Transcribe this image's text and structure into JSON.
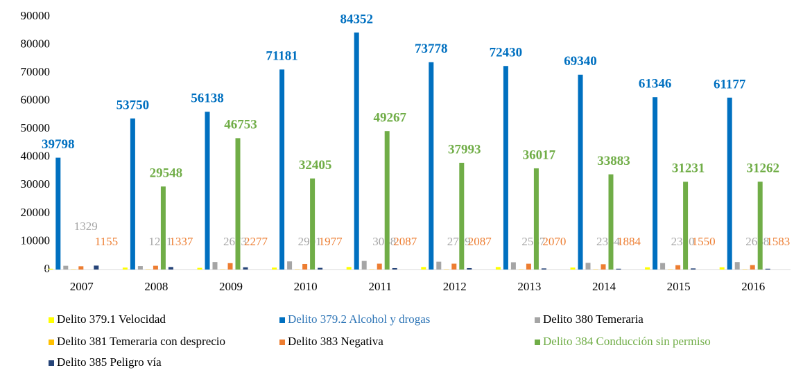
{
  "chart_data": {
    "type": "bar",
    "categories": [
      "2007",
      "2008",
      "2009",
      "2010",
      "2011",
      "2012",
      "2013",
      "2014",
      "2015",
      "2016"
    ],
    "series": [
      {
        "name": "Delito 379.1 Velocidad",
        "color": "#ffff00",
        "values": [
          300,
          700,
          600,
          700,
          900,
          900,
          900,
          700,
          800,
          800
        ],
        "show_labels": false
      },
      {
        "name": "Delito 379.2 Alcohol y drogas",
        "color": "#0070c0",
        "values": [
          39798,
          53750,
          56138,
          71181,
          84352,
          73778,
          72430,
          69340,
          61346,
          61177
        ],
        "show_labels": true
      },
      {
        "name": "Delito 380 Temeraria",
        "color": "#a5a5a5",
        "values": [
          1329,
          1221,
          2673,
          2901,
          3058,
          2799,
          2587,
          2384,
          2310,
          2658
        ],
        "show_labels": true
      },
      {
        "name": "Delito 381 Temeraria con desprecio",
        "color": "#ffc000",
        "values": [
          100,
          100,
          100,
          100,
          100,
          100,
          100,
          100,
          100,
          100
        ],
        "show_labels": false
      },
      {
        "name": "Delito 383 Negativa",
        "color": "#ed7d31",
        "values": [
          1155,
          1337,
          2277,
          1977,
          2087,
          2087,
          2070,
          1884,
          1550,
          1583
        ],
        "show_labels": true
      },
      {
        "name": "Delito 384 Conducción sin permiso",
        "color": "#70ad47",
        "values": [
          null,
          29548,
          46753,
          32405,
          49267,
          37993,
          36017,
          33883,
          31231,
          31262
        ],
        "show_labels": true
      },
      {
        "name": "Delito 385 Peligro vía",
        "color": "#264478",
        "values": [
          1400,
          900,
          800,
          600,
          500,
          500,
          400,
          300,
          400,
          300
        ],
        "show_labels": false
      }
    ],
    "ylim": [
      0,
      90000
    ],
    "yticks": [
      0,
      10000,
      20000,
      30000,
      40000,
      50000,
      60000,
      70000,
      80000,
      90000
    ],
    "grid": false,
    "legend": "bottom"
  }
}
